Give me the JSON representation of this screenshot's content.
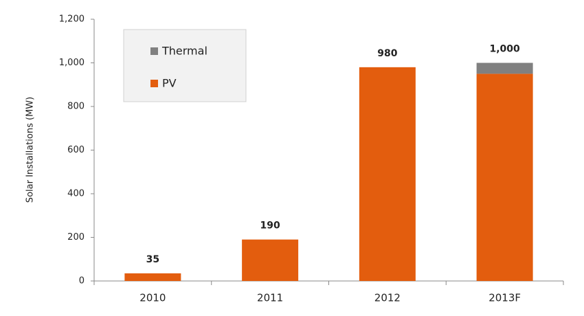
{
  "chart_data": {
    "type": "stacked-bar",
    "y_label": "Solar Installations (MW)",
    "categories": [
      "2010",
      "2011",
      "2012",
      "2013F"
    ],
    "series": [
      {
        "name": "PV",
        "color": "#e35d0e",
        "values": [
          35,
          190,
          980,
          950
        ]
      },
      {
        "name": "Thermal",
        "color": "#808080",
        "values": [
          0,
          0,
          0,
          50
        ]
      }
    ],
    "totals": [
      35,
      190,
      980,
      1000
    ],
    "value_labels": [
      "35",
      "190",
      "980",
      "1,000"
    ],
    "ylim": [
      0,
      1200
    ],
    "yticks": [
      0,
      200,
      400,
      600,
      800,
      {
        "value": 1000,
        "label": "1,000"
      },
      {
        "value": 1200,
        "label": "1,200"
      }
    ],
    "grid": false,
    "legend": "upper-left"
  }
}
